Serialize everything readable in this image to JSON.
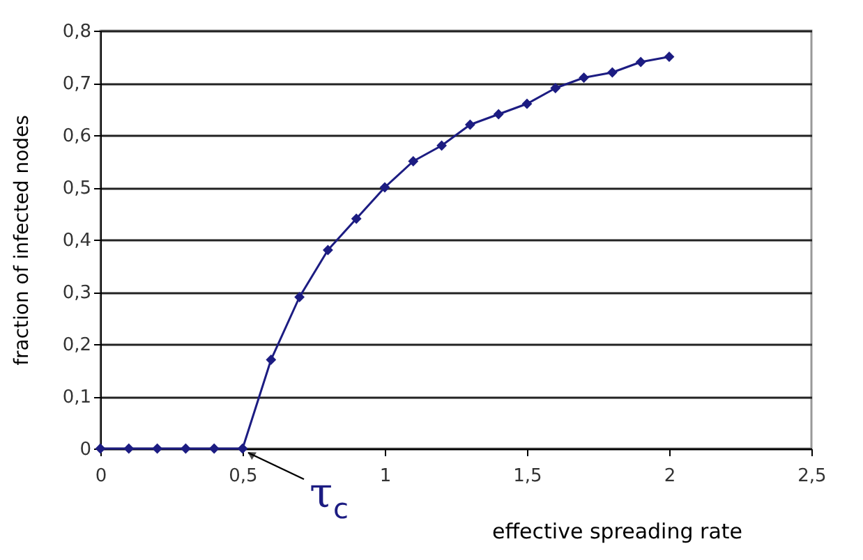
{
  "chart_data": {
    "type": "line",
    "xlabel": "effective spreading rate",
    "ylabel": "fraction of infected nodes",
    "x": [
      0,
      0.1,
      0.2,
      0.3,
      0.4,
      0.5,
      0.6,
      0.7,
      0.8,
      0.9,
      1.0,
      1.1,
      1.2,
      1.3,
      1.4,
      1.5,
      1.6,
      1.7,
      1.8,
      1.9,
      2.0
    ],
    "series": [
      {
        "color": "#1c1c82",
        "values": [
          0,
          0,
          0,
          0,
          0,
          0,
          0.17,
          0.29,
          0.38,
          0.44,
          0.5,
          0.55,
          0.58,
          0.62,
          0.64,
          0.66,
          0.69,
          0.71,
          0.72,
          0.74,
          0.75
        ]
      }
    ],
    "xlim": [
      0,
      2.5
    ],
    "xticks": [
      0,
      {
        "value": 0.5,
        "label": "0,5"
      },
      1,
      {
        "value": 1.5,
        "label": "1,5"
      },
      2,
      {
        "value": 2.5,
        "label": "2,5"
      }
    ],
    "ylim": [
      0,
      0.8
    ],
    "yticks": [
      0,
      {
        "value": 0.1,
        "label": "0,1"
      },
      {
        "value": 0.2,
        "label": "0,2"
      },
      {
        "value": 0.3,
        "label": "0,3"
      },
      {
        "value": 0.4,
        "label": "0,4"
      },
      {
        "value": 0.5,
        "label": "0,5"
      },
      {
        "value": 0.6,
        "label": "0,6"
      },
      {
        "value": 0.7,
        "label": "0,7"
      },
      {
        "value": 0.8,
        "label": "0,8"
      }
    ],
    "annotations": [
      {
        "text": "τ$_{c}$",
        "x": 0.5,
        "y": 0
      }
    ],
    "grid": "y",
    "marker": "diamond",
    "line_style": "solid"
  }
}
